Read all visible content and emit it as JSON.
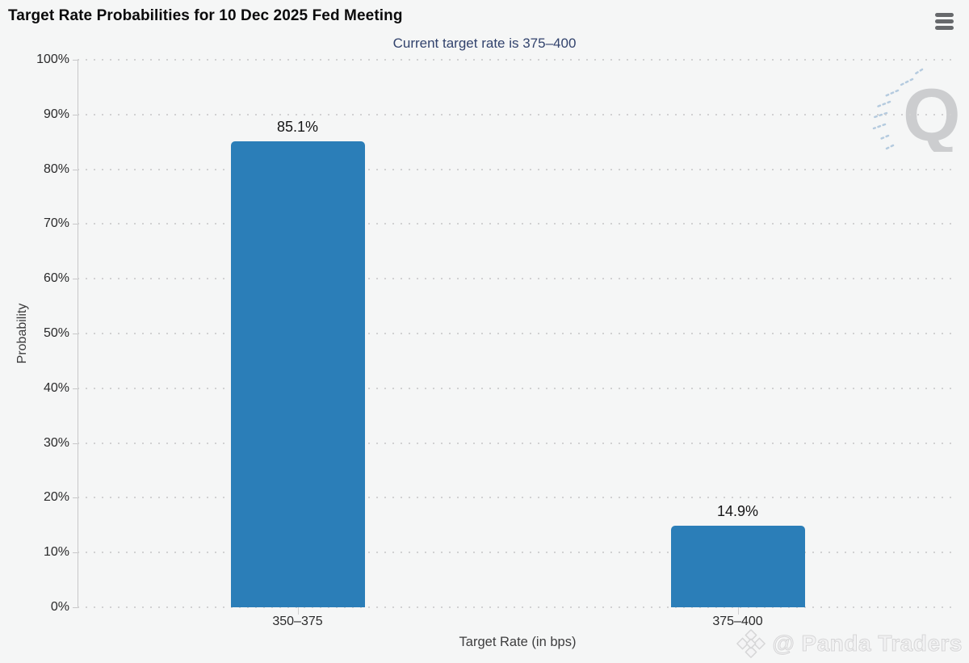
{
  "header": {
    "title": "Target Rate Probabilities for 10 Dec 2025 Fed Meeting",
    "menu_icon": "hamburger-icon"
  },
  "watermarks": {
    "logo_letter": "Q",
    "brand": "@ Panda Traders",
    "brand_icon": "diamond-logo-icon"
  },
  "colors": {
    "background": "#f5f6f6",
    "bar": "#2b7eb8",
    "subtitle": "#32436d",
    "grid": "#d1d1d2",
    "axis": "#c7c7c8",
    "title_text": "#0b0b0c",
    "tick_text": "#2a2a2b"
  },
  "chart_data": {
    "type": "bar",
    "title": "Target Rate Probabilities for 10 Dec 2025 Fed Meeting",
    "subtitle": "Current target rate is 375–400",
    "categories": [
      "350–375",
      "375–400"
    ],
    "values": [
      85.1,
      14.9
    ],
    "value_labels": [
      "85.1%",
      "14.9%"
    ],
    "xlabel": "Target Rate (in bps)",
    "ylabel": "Probability",
    "ylim": [
      0,
      100
    ],
    "ytick_step": 10,
    "ytick_suffix": "%",
    "grid": "dotted horizontal gridlines",
    "legend": "none",
    "bar_color": "#2b7eb8"
  }
}
